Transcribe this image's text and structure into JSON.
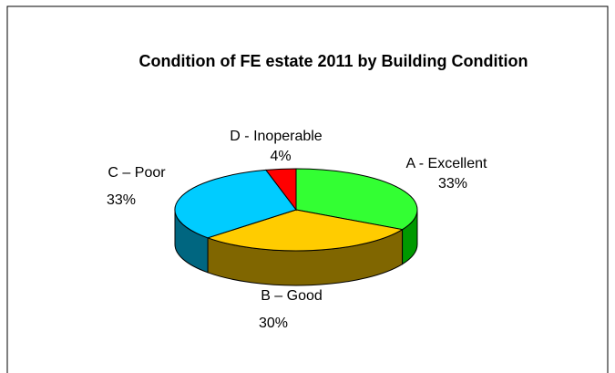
{
  "chart_data": {
    "type": "pie",
    "title": "Condition of FE estate 2011 by Building Condition",
    "categories": [
      "A - Excellent",
      "B – Good",
      "C – Poor",
      "D - Inoperable"
    ],
    "values": [
      33,
      30,
      33,
      4
    ],
    "value_labels": [
      "33%",
      "30%",
      "33%",
      "4%"
    ],
    "colors": [
      "#33ff33",
      "#ffcc00",
      "#00ccff",
      "#ff0000"
    ],
    "side_colors": [
      "#009900",
      "#806600",
      "#006680",
      "#990000"
    ]
  }
}
